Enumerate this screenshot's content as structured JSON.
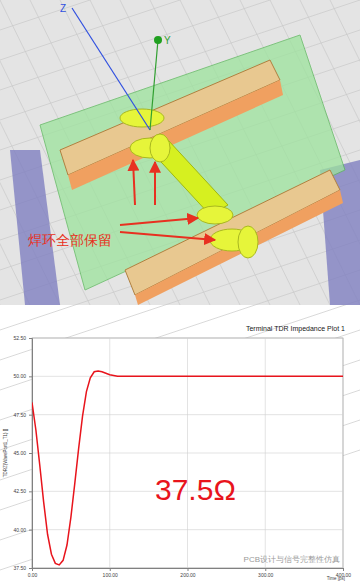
{
  "chart_data": {
    "type": "line",
    "title": "Terminal TDR Impedance Plot 1",
    "x_label": "Time [ps]",
    "y_label": "TDRZ(WavePort1_T1) []",
    "annotation": "37.5Ω",
    "x": [
      0,
      5,
      10,
      15,
      20,
      25,
      30,
      35,
      40,
      45,
      50,
      55,
      60,
      65,
      70,
      75,
      80,
      85,
      90,
      95,
      100,
      110,
      120,
      140,
      160,
      200,
      250,
      300,
      350,
      400
    ],
    "values": [
      48.3,
      46.5,
      44.2,
      41.8,
      39.7,
      38.4,
      37.8,
      37.7,
      38.0,
      39.0,
      40.8,
      43.0,
      45.3,
      47.4,
      49.0,
      49.9,
      50.3,
      50.35,
      50.3,
      50.2,
      50.1,
      50.0,
      50.0,
      50.0,
      50.0,
      50.0,
      50.0,
      50.0,
      50.0,
      50.0
    ],
    "color": "#e8141c",
    "xlim": [
      0,
      400
    ],
    "xticks": [
      {
        "value": 0,
        "label": "0.00"
      },
      {
        "value": 100,
        "label": "100.00"
      },
      {
        "value": 200,
        "label": "200.00"
      },
      {
        "value": 300,
        "label": "300.00"
      },
      {
        "value": 400,
        "label": "400.00"
      }
    ],
    "ylim": [
      37.5,
      52.5
    ],
    "yticks": [
      {
        "value": 37.5,
        "label": "37.50"
      },
      {
        "value": 40,
        "label": "40.00"
      },
      {
        "value": 42.5,
        "label": "42.50"
      },
      {
        "value": 45,
        "label": "45.00"
      },
      {
        "value": 47.5,
        "label": "47.50"
      },
      {
        "value": 50,
        "label": "50.00"
      },
      {
        "value": 52.5,
        "label": "52.50"
      }
    ],
    "grid": true
  },
  "model": {
    "annotation": "焊环全部保留",
    "axes": [
      "Z",
      "Y"
    ]
  },
  "watermark": "PCB设计与信号完整性仿真"
}
